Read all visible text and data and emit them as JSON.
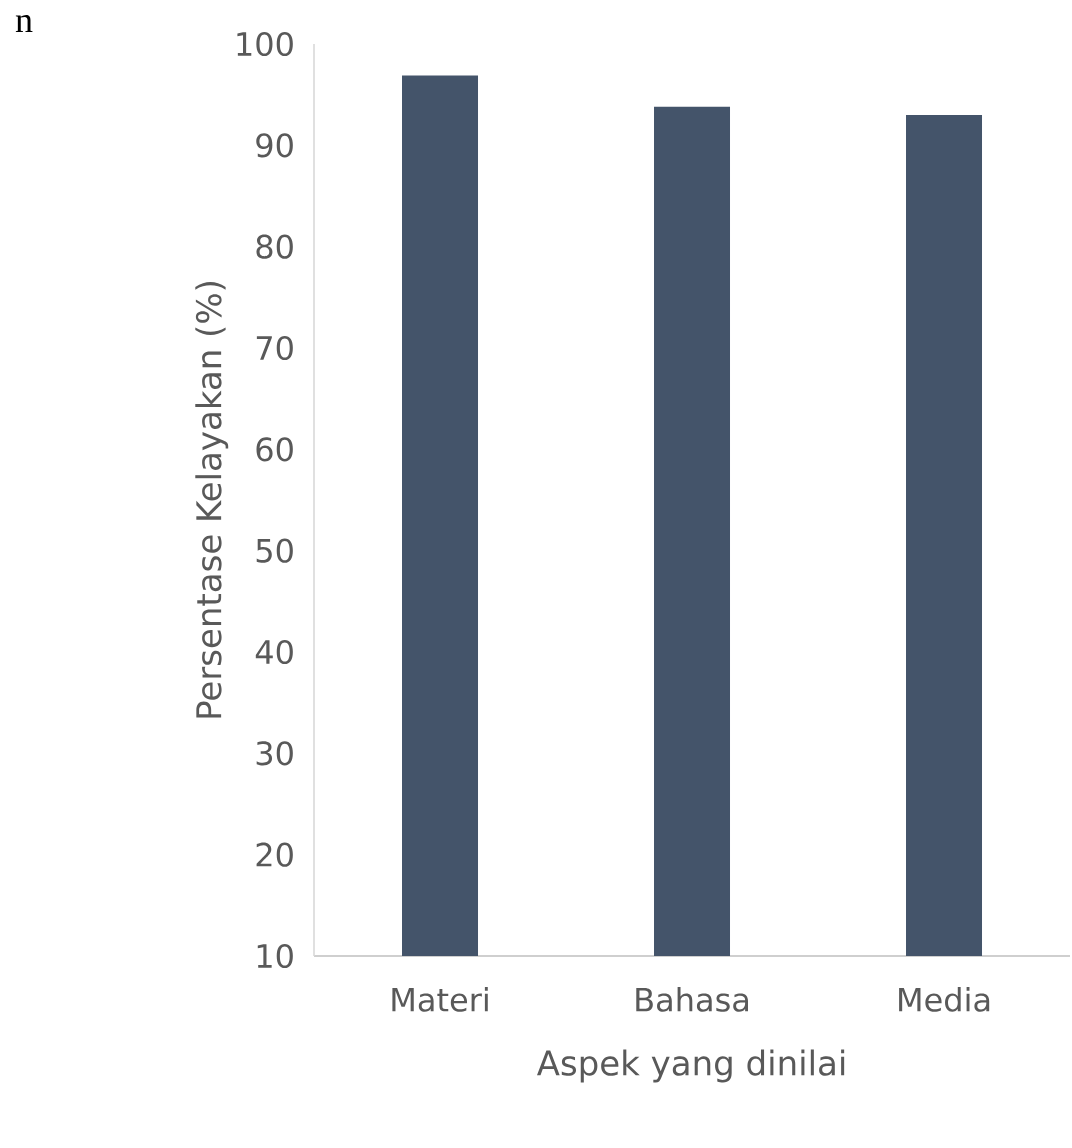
{
  "chart_data": {
    "type": "bar",
    "xlabel": "Aspek yang dinilai",
    "ylabel": "Persentase Kelayakan (%)",
    "categories": [
      "Materi",
      "Bahasa",
      "Media"
    ],
    "values": [
      96.9,
      93.8,
      93.0
    ],
    "color": "#44546a",
    "ylim": [
      10,
      100
    ],
    "yticks": [
      10,
      20,
      30,
      40,
      50,
      60,
      70,
      80,
      90,
      100
    ],
    "annotations": [
      "n"
    ]
  }
}
